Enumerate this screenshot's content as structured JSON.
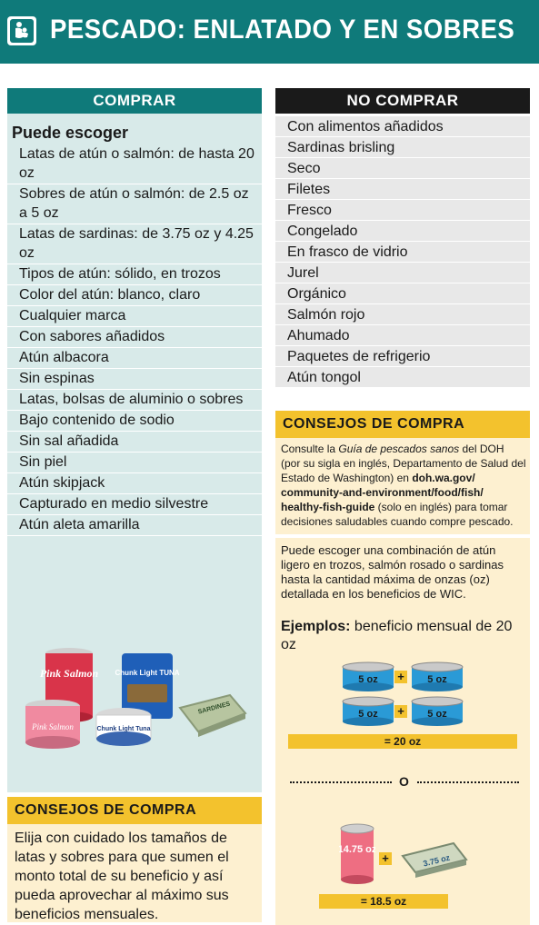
{
  "header": {
    "title": "PESCADO: ENLATADO Y EN SOBRES",
    "icon": "mother-child-icon"
  },
  "buy": {
    "heading": "COMPRAR",
    "subheading": "Puede escoger",
    "items": [
      "Latas de atún o salmón: de hasta 20 oz",
      "Sobres de atún o salmón: de 2.5 oz a 5 oz",
      "Latas de sardinas: de 3.75 oz y 4.25 oz",
      "Tipos de atún: sólido, en trozos",
      "Color del atún: blanco, claro",
      "Cualquier marca",
      "Con sabores añadidos",
      "Atún albacora",
      "Sin espinas",
      "Latas, bolsas de aluminio o sobres",
      "Bajo contenido de sodio",
      "Sin sal añadida",
      "Sin piel",
      "Atún skipjack",
      "Capturado en medio silvestre",
      "Atún aleta amarilla"
    ],
    "product_labels": {
      "can1": "Pink Salmon",
      "can2": "Pink Salmon",
      "pouch": "Chunk Light TUNA",
      "can3": "Chunk Light Tuna",
      "tin": "SARDINES"
    }
  },
  "nobuy": {
    "heading": "NO COMPRAR",
    "items": [
      "Con alimentos añadidos",
      "Sardinas brisling",
      "Seco",
      "Filetes",
      "Fresco",
      "Congelado",
      "En frasco de vidrio",
      "Jurel",
      "Orgánico",
      "Salmón rojo",
      "Ahumado",
      "Paquetes de refrigerio",
      "Atún tongol"
    ]
  },
  "tips_right": {
    "heading": "CONSEJOS DE COMPRA",
    "t1": "Consulte la ",
    "t2": "Guía de pescados sanos",
    "t3": " del DOH (por su sigla en inglés, Departamento de Salud del Estado de Washington) en ",
    "t4": "doh.wa.gov/ community-and-environment/food/fish/ healthy-fish-guide",
    "t5": " (solo en inglés) para tomar decisiones saludables cuando compre pescado."
  },
  "combo": {
    "text": "Puede escoger una combinación de atún ligero en trozos, salmón rosado o sardinas hasta la cantidad máxima de onzas (oz) detallada en los beneficios de WIC.",
    "example_bold": "Ejemplos:",
    "example_rest": " beneficio mensual de 20 oz",
    "can_label": "5 oz",
    "plus": "+",
    "total1": "= 20 oz",
    "or": "O",
    "big_can": "14.75 oz",
    "small_tin": "3.75 oz",
    "total2": "= 18.5 oz"
  },
  "tips_left": {
    "heading": "CONSEJOS DE COMPRA",
    "body": "Elija con cuidado los tamaños de latas y sobres para que sumen el monto total de su beneficio y así pueda aprovechar al máximo sus beneficios mensuales."
  },
  "colors": {
    "teal": "#0f7a7a",
    "light_teal": "#d8eae9",
    "yellow": "#f3c22d",
    "cream": "#fdf0d0",
    "can_blue": "#2a9ad6"
  }
}
